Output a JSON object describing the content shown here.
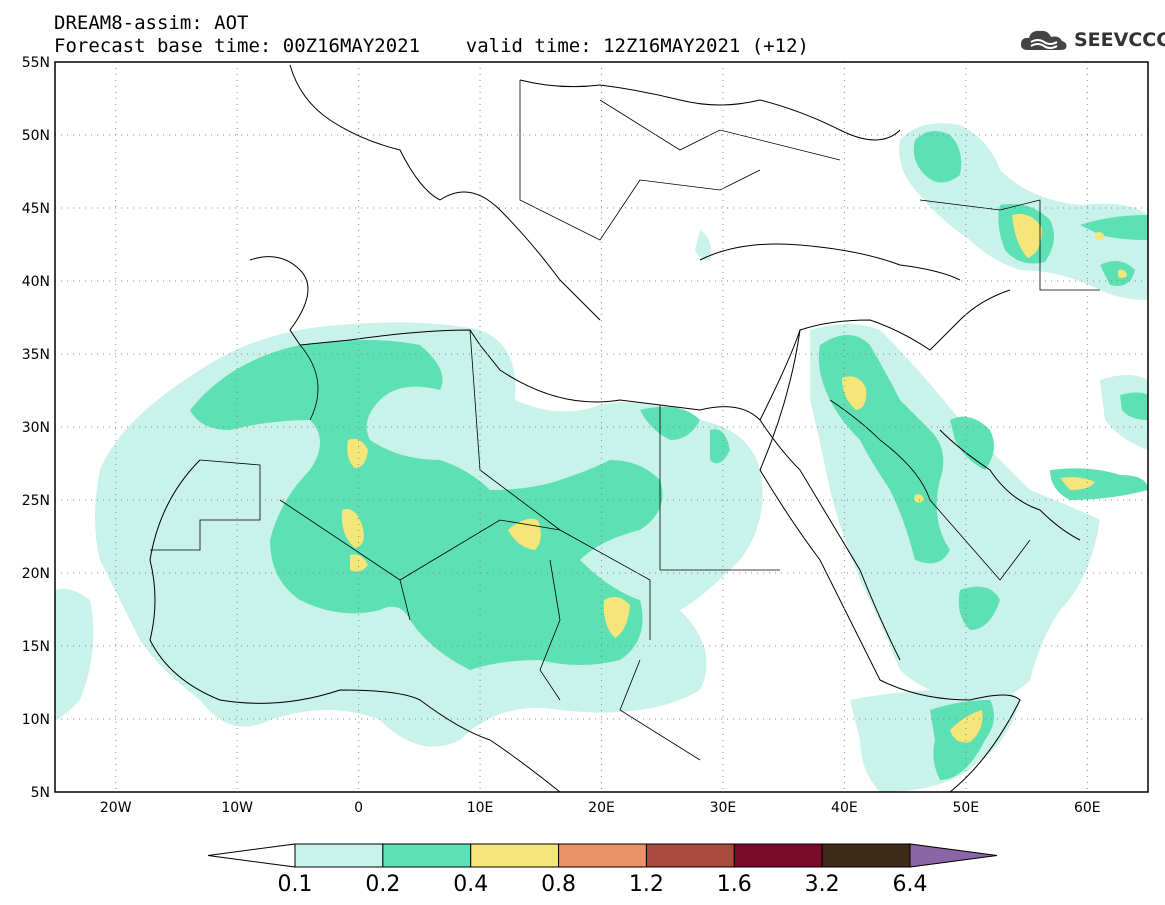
{
  "title": {
    "line1": "DREAM8-assim: AOT",
    "line2": "Forecast base time: 00Z16MAY2021    valid time: 12Z16MAY2021 (+12)"
  },
  "logo": {
    "text": "SEEVCCC",
    "icon": "cloud-icon"
  },
  "map": {
    "lon_range": [
      -25,
      65
    ],
    "lat_range": [
      5,
      55
    ],
    "lat_ticks": [
      "55N",
      "50N",
      "45N",
      "40N",
      "35N",
      "30N",
      "25N",
      "20N",
      "15N",
      "10N",
      "5N"
    ],
    "lon_ticks": [
      "20W",
      "10W",
      "0",
      "10E",
      "20E",
      "30E",
      "40E",
      "50E",
      "60E"
    ],
    "grid": "dotted"
  },
  "colorbar": {
    "labels": [
      "0.1",
      "0.2",
      "0.4",
      "0.8",
      "1.2",
      "1.6",
      "3.2",
      "6.4"
    ],
    "colors": [
      "#c8f2ea",
      "#5ee0b5",
      "#f5e67a",
      "#e8936a",
      "#a84a3e",
      "#7a0a2a",
      "#3e2a17",
      "#8b66a6"
    ],
    "under_color": "#ffffff"
  }
}
